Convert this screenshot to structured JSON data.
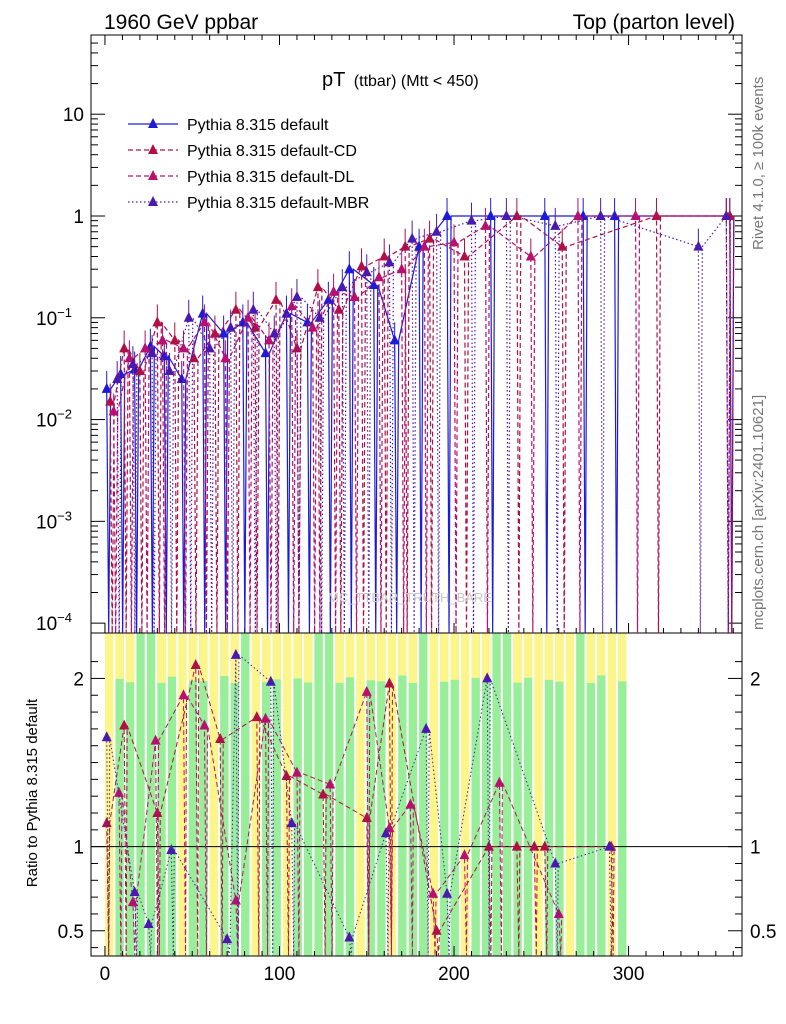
{
  "header": {
    "left": "1960 GeV ppbar",
    "right": "Top (parton level)"
  },
  "side_labels": {
    "rivet": "Rivet 4.1.0, ≥ 100k events",
    "source": "mcplots.cern.ch [arXiv:2401.10621]"
  },
  "watermark": "MC_TTBAR_TRUTH_BARE",
  "chart_data": {
    "type": "line",
    "title_main": "pT",
    "title_sub": "(ttbar) (Mtt < 450)",
    "x_ticks": [
      0,
      100,
      200,
      300
    ],
    "xlim": [
      -8,
      365
    ],
    "main_panel": {
      "yscale": "log",
      "ylim": [
        8e-05,
        60
      ],
      "y_tick_labels": [
        {
          "value": 10,
          "base": "10",
          "exp": ""
        },
        {
          "value": 1,
          "base": "1",
          "exp": ""
        },
        {
          "value": 0.1,
          "base": "10",
          "exp": "−1"
        },
        {
          "value": 0.01,
          "base": "10",
          "exp": "−2"
        },
        {
          "value": 0.001,
          "base": "10",
          "exp": "−3"
        },
        {
          "value": 0.0001,
          "base": "10",
          "exp": "−4"
        }
      ]
    },
    "ratio_panel": {
      "ylabel": "Ratio to Pythia 8.315 default",
      "ylim": [
        0.35,
        2.27
      ],
      "y_ticks": [
        0.5,
        1,
        2
      ],
      "y_tick_labels": [
        "0.5",
        "1",
        "2"
      ]
    },
    "series": [
      {
        "name": "Pythia 8.315 default",
        "color": "#1a1ad9",
        "style": "solid",
        "x": [
          1,
          9,
          17,
          26,
          34,
          44,
          56,
          68,
          79,
          92,
          104,
          116,
          128,
          140,
          154,
          166,
          180,
          196,
          221,
          252,
          274,
          292,
          358
        ],
        "y": [
          0.02,
          0.028,
          0.031,
          0.052,
          0.042,
          0.025,
          0.11,
          0.07,
          0.09,
          0.045,
          0.11,
          0.09,
          0.15,
          0.3,
          0.21,
          0.06,
          0.5,
          1,
          1,
          1,
          1,
          1,
          1
        ]
      },
      {
        "name": "Pythia 8.315 default-CD",
        "color": "#b01045",
        "style": "dashed",
        "x": [
          3,
          11,
          20,
          30,
          40,
          51,
          63,
          75,
          86,
          98,
          110,
          122,
          134,
          147,
          160,
          172,
          186,
          206,
          236,
          262,
          316,
          358
        ],
        "y": [
          0.015,
          0.05,
          0.03,
          0.09,
          0.06,
          0.04,
          0.07,
          0.12,
          0.08,
          0.15,
          0.05,
          0.2,
          0.12,
          0.32,
          0.4,
          0.5,
          0.6,
          0.4,
          1,
          0.5,
          1,
          1
        ]
      },
      {
        "name": "Pythia 8.315 default-DL",
        "color": "#b8106e",
        "style": "dashed",
        "x": [
          5,
          14,
          23,
          33,
          45,
          57,
          69,
          82,
          94,
          107,
          119,
          131,
          143,
          157,
          170,
          183,
          200,
          218,
          244,
          271,
          304,
          356
        ],
        "y": [
          0.012,
          0.04,
          0.05,
          0.06,
          0.05,
          0.09,
          0.04,
          0.1,
          0.06,
          0.13,
          0.08,
          0.18,
          0.16,
          0.25,
          0.3,
          0.5,
          0.55,
          0.8,
          0.4,
          1,
          1,
          1
        ]
      },
      {
        "name": "Pythia 8.315 default-MBR",
        "color": "#4a1ab0",
        "style": "dotted",
        "x": [
          7,
          16,
          27,
          37,
          48,
          60,
          72,
          85,
          97,
          110,
          123,
          136,
          150,
          163,
          176,
          190,
          210,
          230,
          258,
          284,
          340,
          356
        ],
        "y": [
          0.025,
          0.035,
          0.045,
          0.03,
          0.1,
          0.05,
          0.08,
          0.12,
          0.07,
          0.16,
          0.1,
          0.2,
          0.28,
          0.35,
          0.6,
          0.7,
          0.9,
          1,
          0.8,
          1,
          0.5,
          1
        ]
      }
    ],
    "ratios": [
      {
        "name": "Pythia 8.315 default-CD",
        "x": [
          1,
          11,
          30,
          52,
          66,
          87,
          104,
          125,
          150,
          163,
          190,
          220,
          236,
          246,
          252,
          290
        ],
        "y": [
          1.14,
          1.72,
          1.2,
          2.08,
          1.64,
          1.77,
          1.42,
          1.31,
          1.17,
          1.97,
          0.5,
          1.0,
          1.0,
          1.0,
          1.0,
          1.0
        ]
      },
      {
        "name": "Pythia 8.315 default-DL",
        "x": [
          8,
          16,
          29,
          45,
          57,
          75,
          92,
          110,
          129,
          150,
          163,
          175,
          188,
          206,
          226,
          260
        ],
        "y": [
          1.32,
          0.67,
          1.63,
          1.9,
          1.72,
          0.68,
          1.76,
          1.44,
          1.37,
          1.92,
          1.11,
          1.25,
          0.72,
          0.95,
          1.38,
          0.6
        ]
      },
      {
        "name": "Pythia 8.315 default-MBR",
        "x": [
          1,
          17,
          25,
          38,
          70,
          75,
          95,
          107,
          140,
          161,
          184,
          196,
          219,
          258,
          289
        ],
        "y": [
          1.65,
          0.73,
          0.54,
          0.98,
          0.45,
          2.14,
          1.98,
          1.14,
          0.46,
          1.08,
          1.7,
          0.72,
          2.0,
          0.9,
          1.0
        ]
      }
    ]
  }
}
